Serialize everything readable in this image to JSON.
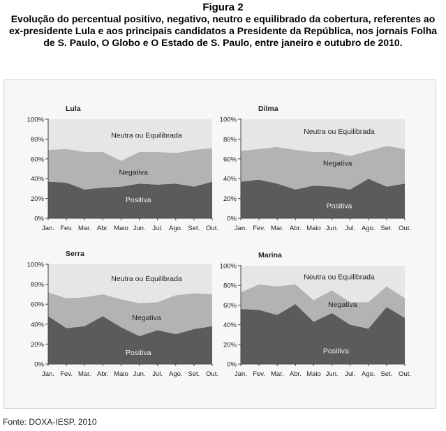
{
  "header": {
    "figure_label": "Figura 2",
    "title": "Evolução do percentual positivo, negativo, neutro e equilibrado da cobertura, referentes ao ex-presidente Lula e aos principais candidatos a Presidente da República, nos jornais Folha de S. Paulo, O Globo e O Estado de S. Paulo, entre janeiro e outubro de 2010."
  },
  "source": "Fonte: DOXA-IESP, 2010",
  "colors": {
    "positiva": "#5b5b5b",
    "negativa": "#b3b3b3",
    "neutra": "#e6e6e6",
    "frame_bg": "#f7f7f7"
  },
  "chart_data": [
    {
      "type": "area",
      "title": "Lula",
      "categories": [
        "Jan.",
        "Fev.",
        "Mar.",
        "Abr.",
        "Maio",
        "Jun.",
        "Jul.",
        "Ago.",
        "Set.",
        "Out."
      ],
      "ylim": [
        0,
        100
      ],
      "yticks": [
        "0%",
        "20%",
        "40%",
        "60%",
        "80%",
        "100%"
      ],
      "stacked": true,
      "series": [
        {
          "name": "Positiva",
          "values": [
            37,
            36,
            29,
            31,
            32,
            35,
            34,
            35,
            32,
            37
          ]
        },
        {
          "name": "Negativa",
          "values": [
            32,
            34,
            38,
            36,
            26,
            32,
            33,
            31,
            37,
            34
          ]
        },
        {
          "name": "Neutra ou Equilibrada",
          "values": [
            31,
            30,
            33,
            33,
            42,
            33,
            33,
            34,
            31,
            29
          ]
        }
      ]
    },
    {
      "type": "area",
      "title": "Dilma",
      "categories": [
        "Jan.",
        "Fev.",
        "Mar.",
        "Abr.",
        "Maio",
        "Jun.",
        "Jul.",
        "Ago.",
        "Set.",
        "Out."
      ],
      "ylim": [
        0,
        100
      ],
      "yticks": [
        "0%",
        "20%",
        "40%",
        "60%",
        "80%",
        "100%"
      ],
      "stacked": true,
      "series": [
        {
          "name": "Positiva",
          "values": [
            37,
            39,
            35,
            29,
            33,
            32,
            29,
            40,
            32,
            35
          ]
        },
        {
          "name": "Negativa",
          "values": [
            31,
            31,
            37,
            40,
            34,
            35,
            34,
            28,
            41,
            35
          ]
        },
        {
          "name": "Neutra ou Equilibrada",
          "values": [
            32,
            30,
            28,
            31,
            33,
            33,
            37,
            32,
            27,
            30
          ]
        }
      ]
    },
    {
      "type": "area",
      "title": "Serra",
      "categories": [
        "Jan.",
        "Fev.",
        "Mar.",
        "Abr.",
        "Maio",
        "Jun.",
        "Jul.",
        "Ago.",
        "Set.",
        "Out."
      ],
      "ylim": [
        0,
        100
      ],
      "yticks": [
        "0%",
        "20%",
        "40%",
        "60%",
        "80%",
        "100%"
      ],
      "stacked": true,
      "series": [
        {
          "name": "Positiva",
          "values": [
            48,
            36,
            38,
            48,
            37,
            28,
            34,
            30,
            35,
            38
          ]
        },
        {
          "name": "Negativa",
          "values": [
            24,
            30,
            29,
            22,
            28,
            33,
            28,
            39,
            36,
            32
          ]
        },
        {
          "name": "Neutra ou Equilibrada",
          "values": [
            28,
            34,
            33,
            30,
            35,
            39,
            38,
            31,
            29,
            30
          ]
        }
      ]
    },
    {
      "type": "area",
      "title": "Marina",
      "categories": [
        "Jan.",
        "Fev.",
        "Mar.",
        "Abr.",
        "Maio",
        "Jun.",
        "Jul.",
        "Ago.",
        "Set.",
        "Out."
      ],
      "ylim": [
        0,
        100
      ],
      "yticks": [
        "0%",
        "20%",
        "40%",
        "60%",
        "80%",
        "100%"
      ],
      "stacked": true,
      "series": [
        {
          "name": "Positiva",
          "values": [
            56,
            55,
            50,
            61,
            43,
            52,
            40,
            36,
            58,
            47
          ]
        },
        {
          "name": "Negativa",
          "values": [
            17,
            26,
            29,
            20,
            22,
            23,
            23,
            27,
            21,
            20
          ]
        },
        {
          "name": "Neutra ou Equilibrada",
          "values": [
            27,
            19,
            21,
            19,
            35,
            25,
            37,
            37,
            21,
            33
          ]
        }
      ]
    }
  ]
}
